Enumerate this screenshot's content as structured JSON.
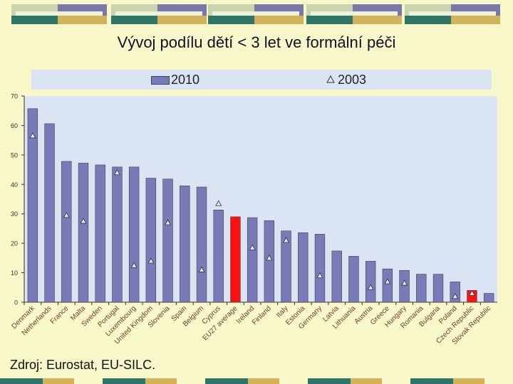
{
  "slide": {
    "title": "Vývoj podílu dětí < 3 let ve formální péči",
    "source": "Zdroj: Eurostat, EU-SILC."
  },
  "colors": {
    "bar_2010": "#7a7ab8",
    "bar_highlight": "#ff1010",
    "marker_2003": "#dfe7f2",
    "plot_bg": "#dbe4f3"
  },
  "chart_data": {
    "type": "bar",
    "title": "",
    "xlabel": "",
    "ylabel": "",
    "ylim": [
      0,
      70
    ],
    "yticks": [
      0,
      10,
      20,
      30,
      40,
      50,
      60,
      70
    ],
    "grid": false,
    "legend_position": "top",
    "categories": [
      "Denmark",
      "Netherlands",
      "France",
      "Malta",
      "Sweden",
      "Portugal",
      "Luxembourg",
      "United Kingdom",
      "Slovenia",
      "Spain",
      "Belgium",
      "Cyprus",
      "EU27 average",
      "Ireland",
      "Finland",
      "Italy",
      "Estonia",
      "Germany",
      "Latvia",
      "Lithuania",
      "Austria",
      "Greece",
      "Hungary",
      "Romania",
      "Bulgaria",
      "Poland",
      "Czech Republic",
      "Slovak Republic"
    ],
    "highlighted_categories": [
      "EU27 average",
      "Czech Republic"
    ],
    "series": [
      {
        "name": "2010",
        "marker": "bar",
        "values": [
          65.7,
          60.6,
          47.8,
          47.2,
          46.6,
          45.9,
          45.9,
          42.1,
          41.8,
          39.5,
          39.1,
          31.3,
          29.0,
          28.7,
          27.7,
          24.2,
          23.6,
          23.1,
          17.4,
          15.6,
          13.9,
          11.3,
          10.8,
          9.5,
          9.5,
          6.9,
          4.0,
          3.0
        ]
      },
      {
        "name": "2003",
        "marker": "triangle",
        "values": [
          56.5,
          null,
          29.5,
          27.5,
          null,
          44.0,
          12.5,
          14.0,
          27.0,
          null,
          11.0,
          33.5,
          null,
          18.5,
          15.0,
          21.0,
          null,
          9.0,
          null,
          null,
          5.0,
          7.0,
          6.5,
          null,
          null,
          2.0,
          3.0,
          null
        ]
      }
    ]
  }
}
